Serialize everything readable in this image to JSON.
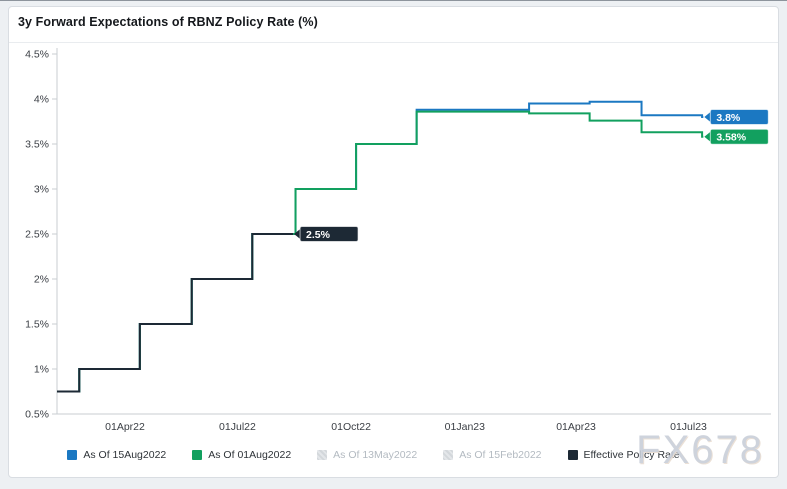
{
  "header": {
    "title": "3y Forward Expectations of RBNZ Policy Rate (%)"
  },
  "watermark": {
    "text": "FX678"
  },
  "colors": {
    "blue": "#1b78c2",
    "green": "#12a05f",
    "dark_navy": "#1d2935",
    "disabled_swatch": "#cdd1d6",
    "disabled_text": "#b3bac1",
    "axis_line": "#c9cdd2",
    "tick_text": "#3a3e44"
  },
  "chart_data": {
    "type": "line",
    "subtype": "step-after",
    "title": "3y Forward Expectations of RBNZ Policy Rate (%)",
    "xlabel": "",
    "ylabel": "",
    "grid": false,
    "legend_position": "bottom",
    "y_axis": {
      "min": 0.5,
      "max": 4.5,
      "step": 0.5,
      "unit": "%",
      "tick_labels": [
        "0.5%",
        "1%",
        "1.5%",
        "2%",
        "2.5%",
        "3%",
        "3.5%",
        "4%",
        "4.5%"
      ]
    },
    "x_axis": {
      "ticks": [
        {
          "label": "01Apr22",
          "date": "2022-04-01"
        },
        {
          "label": "01Jul22",
          "date": "2022-07-01"
        },
        {
          "label": "01Oct22",
          "date": "2022-10-01"
        },
        {
          "label": "01Jan23",
          "date": "2023-01-01"
        },
        {
          "label": "01Apr23",
          "date": "2023-04-01"
        },
        {
          "label": "01Jul23",
          "date": "2023-07-01"
        }
      ]
    },
    "series": [
      {
        "name": "As Of 15Aug2022",
        "color": "#1b78c2",
        "visible": true,
        "end_label": "3.8%",
        "end_date": "2023-07-13",
        "points": [
          [
            "2022-02-05",
            0.75
          ],
          [
            "2022-02-23",
            1.0
          ],
          [
            "2022-04-13",
            1.5
          ],
          [
            "2022-05-25",
            2.0
          ],
          [
            "2022-07-13",
            2.5
          ],
          [
            "2022-08-17",
            3.0
          ],
          [
            "2022-10-05",
            3.5
          ],
          [
            "2022-11-23",
            3.88
          ],
          [
            "2023-02-22",
            3.95
          ],
          [
            "2023-04-12",
            3.97
          ],
          [
            "2023-05-24",
            3.82
          ],
          [
            "2023-07-12",
            3.8
          ]
        ]
      },
      {
        "name": "As Of 01Aug2022",
        "color": "#12a05f",
        "visible": true,
        "end_label": "3.58%",
        "end_date": "2023-07-13",
        "points": [
          [
            "2022-02-05",
            0.75
          ],
          [
            "2022-02-23",
            1.0
          ],
          [
            "2022-04-13",
            1.5
          ],
          [
            "2022-05-25",
            2.0
          ],
          [
            "2022-07-13",
            2.5
          ],
          [
            "2022-08-17",
            3.0
          ],
          [
            "2022-10-05",
            3.5
          ],
          [
            "2022-11-23",
            3.86
          ],
          [
            "2023-02-22",
            3.84
          ],
          [
            "2023-04-12",
            3.76
          ],
          [
            "2023-05-24",
            3.63
          ],
          [
            "2023-07-12",
            3.58
          ]
        ]
      },
      {
        "name": "As Of 13May2022",
        "color": "#cdd1d6",
        "visible": false,
        "points": []
      },
      {
        "name": "As Of 15Feb2022",
        "color": "#cdd1d6",
        "visible": false,
        "points": []
      },
      {
        "name": "Effective Policy Rate",
        "color": "#1d2935",
        "visible": true,
        "end_label": "2.5%",
        "end_date": "2022-08-15",
        "points": [
          [
            "2022-02-05",
            0.75
          ],
          [
            "2022-02-23",
            1.0
          ],
          [
            "2022-04-13",
            1.5
          ],
          [
            "2022-05-25",
            2.0
          ],
          [
            "2022-07-13",
            2.5
          ]
        ]
      }
    ]
  }
}
